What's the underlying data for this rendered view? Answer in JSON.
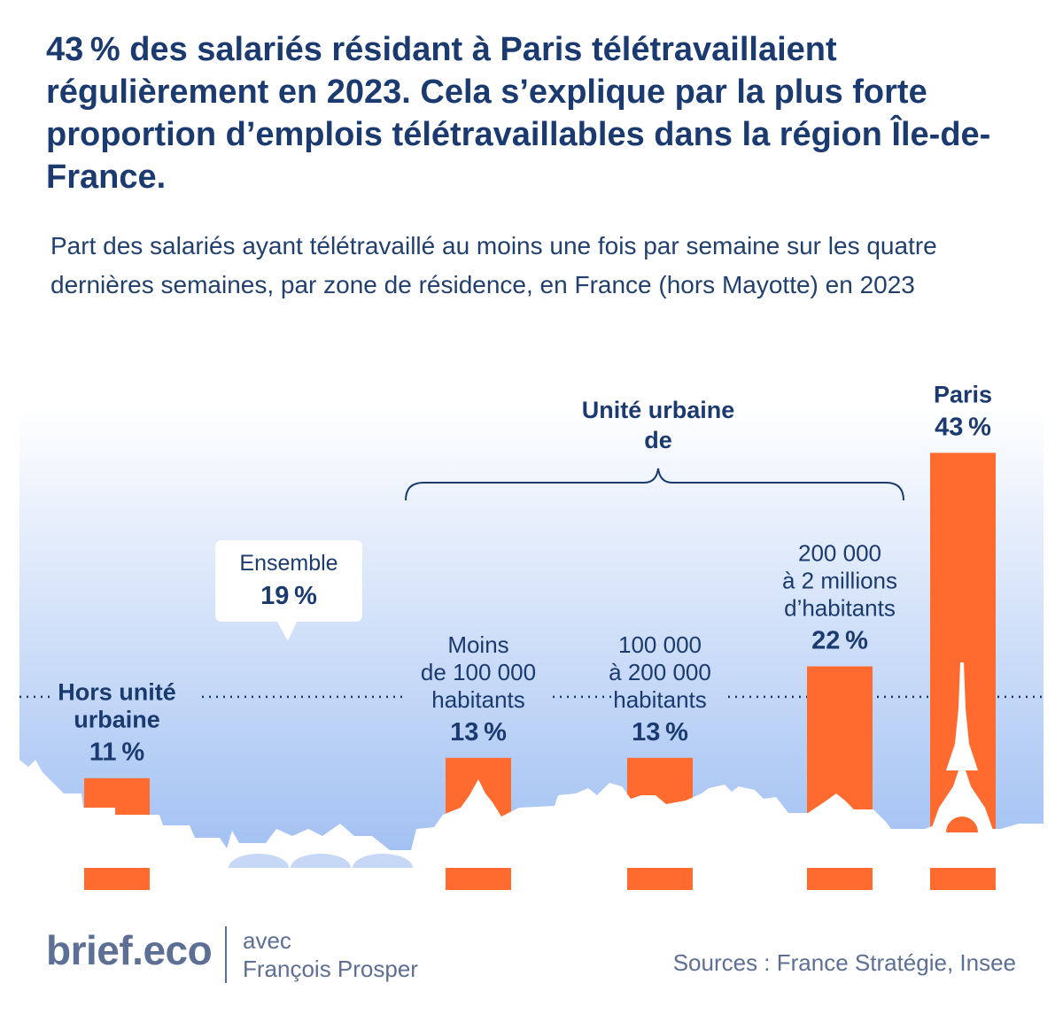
{
  "headline": "43 % des salariés résidant à Paris télétravaillaient régulièrement en 2023. Cela s’explique par la plus forte proportion d’emplois télétravaillables dans la région Île-de-France.",
  "subtitle": "Part des salariés ayant télétravaillé au moins une fois par semaine sur les quatre dernières semaines, par zone de résidence, en France (hors Mayotte) en 2023",
  "colors": {
    "bar": "#ff6a2e",
    "text_dark": "#1a3a70",
    "sky_top": "#ffffff",
    "sky_bottom": "#9fbff2",
    "footer": "#5d6f94"
  },
  "chart_data": {
    "type": "bar",
    "unit": "%",
    "ylim": [
      0,
      48
    ],
    "categories": [
      [
        "Hors unité",
        "urbaine"
      ],
      [
        "Moins",
        "de 100 000",
        "habitants"
      ],
      [
        "100 000",
        "à 200 000",
        "habitants"
      ],
      [
        "200 000",
        "à 2 millions",
        "d’habitants"
      ],
      [
        "Paris"
      ]
    ],
    "values": [
      11,
      13,
      13,
      22,
      43
    ],
    "value_labels": [
      "11 %",
      "13 %",
      "13 %",
      "22 %",
      "43 %"
    ],
    "reference_line": {
      "label": "Ensemble",
      "value": 19,
      "value_label": "19 %"
    },
    "group_bracket": {
      "label": [
        "Unité urbaine",
        "de"
      ],
      "covers": [
        1,
        2,
        3
      ]
    }
  },
  "footer": {
    "logo": "brief.eco",
    "with_line1": "avec",
    "with_line2": "François Prosper",
    "sources": "Sources : France Stratégie, Insee"
  }
}
